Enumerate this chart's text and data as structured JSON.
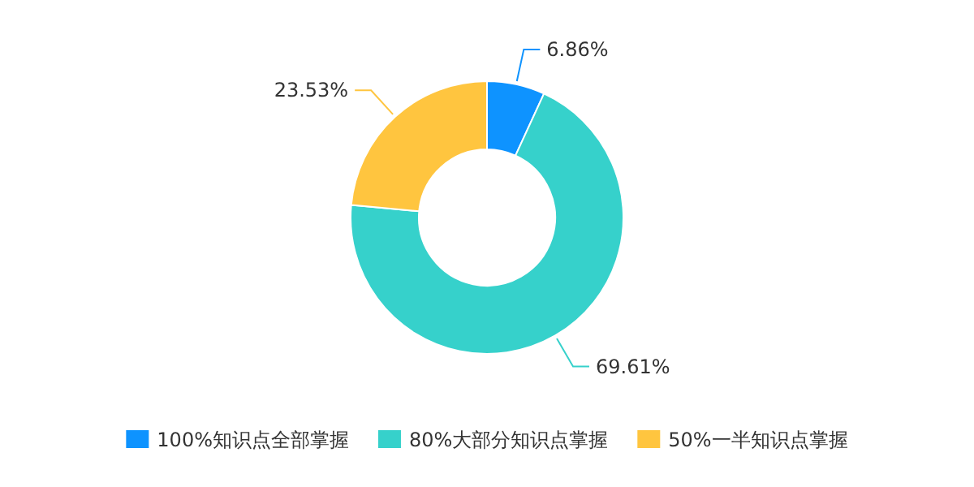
{
  "chart_data": {
    "type": "donut",
    "categories": [
      "100%知识点全部掌握",
      "80%大部分知识点掌握",
      "50%一半知识点掌握"
    ],
    "values": [
      6.86,
      69.61,
      23.53
    ],
    "colors": [
      "#0e93ff",
      "#36d1cb",
      "#ffc53f"
    ],
    "value_labels": [
      "6.86%",
      "69.61%",
      "23.53%"
    ],
    "legend": "bottom"
  }
}
